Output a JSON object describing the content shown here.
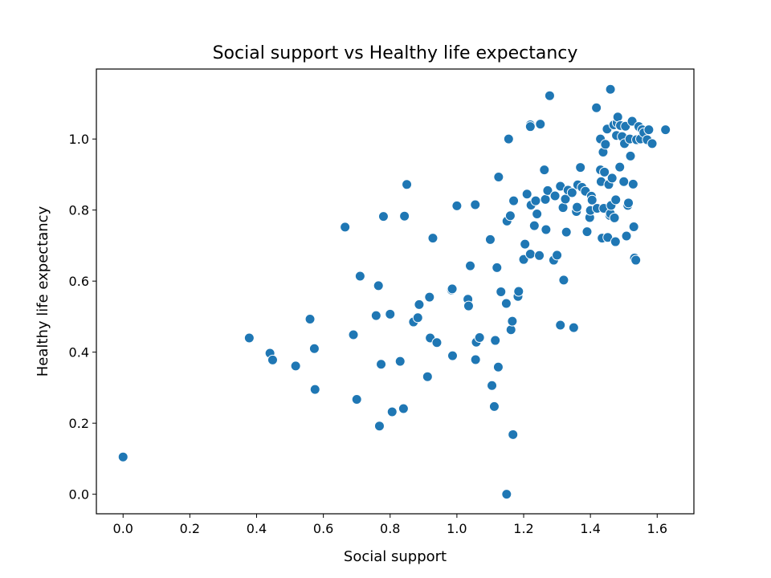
{
  "chart_data": {
    "type": "scatter",
    "title": "Social support vs Healthy life expectancy",
    "xlabel": "Social support",
    "ylabel": "Healthy life expectancy",
    "xlim": [
      -0.08,
      1.71
    ],
    "ylim": [
      -0.055,
      1.197
    ],
    "xticks": [
      "0.0",
      "0.2",
      "0.4",
      "0.6",
      "0.8",
      "1.0",
      "1.2",
      "1.4",
      "1.6"
    ],
    "yticks": [
      "0.0",
      "0.2",
      "0.4",
      "0.6",
      "0.8",
      "1.0"
    ],
    "grid": false,
    "legend": "none",
    "marker_color": "#1f77b4",
    "points": [
      [
        0.0,
        0.105
      ],
      [
        0.378,
        0.44
      ],
      [
        0.44,
        0.397
      ],
      [
        0.448,
        0.378
      ],
      [
        0.517,
        0.361
      ],
      [
        0.56,
        0.493
      ],
      [
        0.573,
        0.41
      ],
      [
        0.575,
        0.295
      ],
      [
        0.665,
        0.752
      ],
      [
        0.69,
        0.449
      ],
      [
        0.7,
        0.267
      ],
      [
        0.71,
        0.614
      ],
      [
        0.758,
        0.503
      ],
      [
        0.765,
        0.587
      ],
      [
        0.768,
        0.192
      ],
      [
        0.773,
        0.366
      ],
      [
        0.78,
        0.782
      ],
      [
        0.8,
        0.507
      ],
      [
        0.806,
        0.232
      ],
      [
        0.83,
        0.374
      ],
      [
        0.84,
        0.241
      ],
      [
        0.843,
        0.783
      ],
      [
        0.85,
        0.872
      ],
      [
        0.87,
        0.485
      ],
      [
        0.883,
        0.497
      ],
      [
        0.887,
        0.534
      ],
      [
        0.912,
        0.331
      ],
      [
        0.918,
        0.555
      ],
      [
        0.92,
        0.44
      ],
      [
        0.928,
        0.721
      ],
      [
        0.94,
        0.427
      ],
      [
        0.984,
        0.575
      ],
      [
        0.986,
        0.578
      ],
      [
        0.987,
        0.39
      ],
      [
        1.0,
        0.812
      ],
      [
        1.033,
        0.549
      ],
      [
        1.035,
        0.53
      ],
      [
        1.04,
        0.643
      ],
      [
        1.055,
        0.815
      ],
      [
        1.056,
        0.379
      ],
      [
        1.058,
        0.428
      ],
      [
        1.068,
        0.441
      ],
      [
        1.1,
        0.717
      ],
      [
        1.105,
        0.306
      ],
      [
        1.112,
        0.247
      ],
      [
        1.115,
        0.433
      ],
      [
        1.12,
        0.638
      ],
      [
        1.124,
        0.358
      ],
      [
        1.125,
        0.893
      ],
      [
        1.132,
        0.57
      ],
      [
        1.148,
        0.537
      ],
      [
        1.149,
        0.0
      ],
      [
        1.15,
        0.769
      ],
      [
        1.155,
        1.0
      ],
      [
        1.16,
        0.784
      ],
      [
        1.162,
        0.463
      ],
      [
        1.166,
        0.487
      ],
      [
        1.168,
        0.168
      ],
      [
        1.17,
        0.826
      ],
      [
        1.183,
        0.557
      ],
      [
        1.185,
        0.571
      ],
      [
        1.2,
        0.661
      ],
      [
        1.204,
        0.704
      ],
      [
        1.21,
        0.845
      ],
      [
        1.22,
        0.676
      ],
      [
        1.222,
        0.814
      ],
      [
        1.22,
        1.04
      ],
      [
        1.22,
        1.035
      ],
      [
        1.232,
        0.756
      ],
      [
        1.236,
        0.826
      ],
      [
        1.24,
        0.789
      ],
      [
        1.247,
        0.672
      ],
      [
        1.25,
        1.042
      ],
      [
        1.262,
        0.913
      ],
      [
        1.265,
        0.83
      ],
      [
        1.267,
        0.745
      ],
      [
        1.272,
        0.855
      ],
      [
        1.278,
        1.122
      ],
      [
        1.29,
        0.659
      ],
      [
        1.294,
        0.84
      ],
      [
        1.3,
        0.673
      ],
      [
        1.31,
        0.867
      ],
      [
        1.31,
        0.476
      ],
      [
        1.318,
        0.807
      ],
      [
        1.32,
        0.603
      ],
      [
        1.325,
        0.831
      ],
      [
        1.328,
        0.738
      ],
      [
        1.333,
        0.856
      ],
      [
        1.345,
        0.849
      ],
      [
        1.35,
        0.469
      ],
      [
        1.358,
        0.796
      ],
      [
        1.36,
        0.808
      ],
      [
        1.362,
        0.871
      ],
      [
        1.37,
        0.92
      ],
      [
        1.375,
        0.864
      ],
      [
        1.385,
        0.853
      ],
      [
        1.39,
        0.739
      ],
      [
        1.398,
        0.779
      ],
      [
        1.4,
        0.799
      ],
      [
        1.403,
        0.839
      ],
      [
        1.405,
        0.828
      ],
      [
        1.418,
        1.088
      ],
      [
        1.42,
        0.805
      ],
      [
        1.43,
        1.0
      ],
      [
        1.43,
        0.913
      ],
      [
        1.432,
        0.88
      ],
      [
        1.435,
        0.721
      ],
      [
        1.438,
        0.963
      ],
      [
        1.44,
        0.805
      ],
      [
        1.442,
        0.907
      ],
      [
        1.445,
        0.985
      ],
      [
        1.45,
        1.028
      ],
      [
        1.452,
        0.723
      ],
      [
        1.455,
        0.872
      ],
      [
        1.458,
        0.785
      ],
      [
        1.46,
        1.14
      ],
      [
        1.46,
        0.79
      ],
      [
        1.462,
        0.813
      ],
      [
        1.465,
        0.89
      ],
      [
        1.47,
        1.04
      ],
      [
        1.472,
        0.778
      ],
      [
        1.475,
        0.711
      ],
      [
        1.476,
        0.829
      ],
      [
        1.478,
        1.01
      ],
      [
        1.48,
        1.046
      ],
      [
        1.482,
        1.062
      ],
      [
        1.488,
        0.921
      ],
      [
        1.49,
        1.038
      ],
      [
        1.495,
        1.007
      ],
      [
        1.5,
        0.88
      ],
      [
        1.502,
        0.987
      ],
      [
        1.505,
        1.036
      ],
      [
        1.508,
        0.727
      ],
      [
        1.512,
        0.813
      ],
      [
        1.514,
        0.82
      ],
      [
        1.518,
        1.0
      ],
      [
        1.52,
        0.952
      ],
      [
        1.525,
        1.05
      ],
      [
        1.528,
        0.873
      ],
      [
        1.53,
        0.753
      ],
      [
        1.532,
        0.665
      ],
      [
        1.536,
        0.659
      ],
      [
        1.538,
        0.998
      ],
      [
        1.545,
        1.035
      ],
      [
        1.55,
        1.0
      ],
      [
        1.555,
        1.026
      ],
      [
        1.56,
        1.018
      ],
      [
        1.57,
        0.998
      ],
      [
        1.575,
        1.026
      ],
      [
        1.585,
        0.987
      ],
      [
        1.625,
        1.026
      ]
    ]
  }
}
